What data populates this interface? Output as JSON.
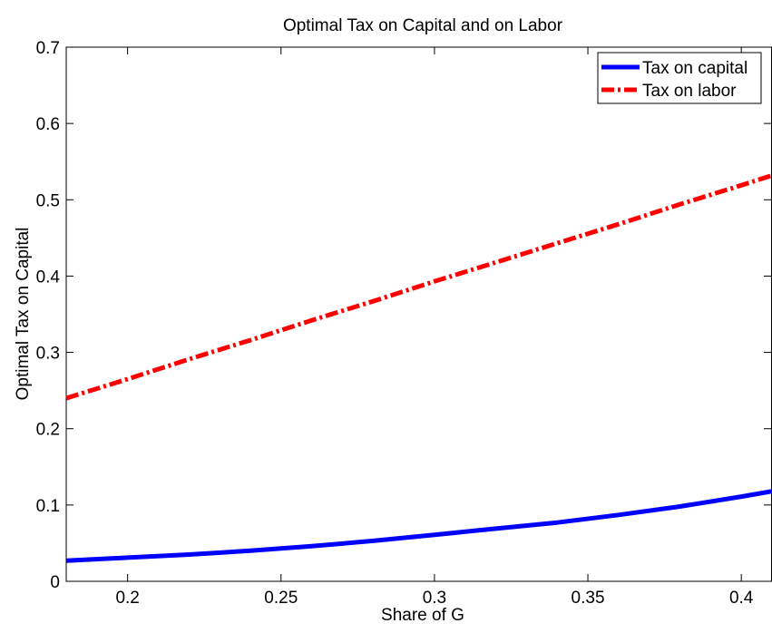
{
  "chart_data": {
    "type": "line",
    "title": "Optimal Tax on Capital and on Labor",
    "xlabel": "Share of G",
    "ylabel": "Optimal Tax on Capital",
    "xlim": [
      0.18,
      0.41
    ],
    "ylim": [
      0,
      0.7
    ],
    "xticks": [
      0.2,
      0.25,
      0.3,
      0.35,
      0.4
    ],
    "yticks": [
      0,
      0.1,
      0.2,
      0.3,
      0.4,
      0.5,
      0.6,
      0.7
    ],
    "xtick_labels": [
      "0.2",
      "0.25",
      "0.3",
      "0.35",
      "0.4"
    ],
    "ytick_labels": [
      "0",
      "0.1",
      "0.2",
      "0.3",
      "0.4",
      "0.5",
      "0.6",
      "0.7"
    ],
    "grid": false,
    "legend_position": "top-right",
    "series": [
      {
        "name": "Tax on capital",
        "color": "#0000ff",
        "style": "solid",
        "x": [
          0.18,
          0.2,
          0.22,
          0.24,
          0.26,
          0.28,
          0.3,
          0.32,
          0.34,
          0.36,
          0.38,
          0.4,
          0.41
        ],
        "y": [
          0.027,
          0.031,
          0.035,
          0.04,
          0.046,
          0.053,
          0.061,
          0.069,
          0.077,
          0.087,
          0.098,
          0.111,
          0.118
        ]
      },
      {
        "name": "Tax on labor",
        "color": "#ff0000",
        "style": "dashdot",
        "x": [
          0.18,
          0.2,
          0.22,
          0.24,
          0.26,
          0.28,
          0.3,
          0.32,
          0.34,
          0.36,
          0.38,
          0.4,
          0.41
        ],
        "y": [
          0.24,
          0.265,
          0.291,
          0.316,
          0.342,
          0.367,
          0.393,
          0.418,
          0.443,
          0.468,
          0.494,
          0.519,
          0.532
        ]
      }
    ]
  }
}
